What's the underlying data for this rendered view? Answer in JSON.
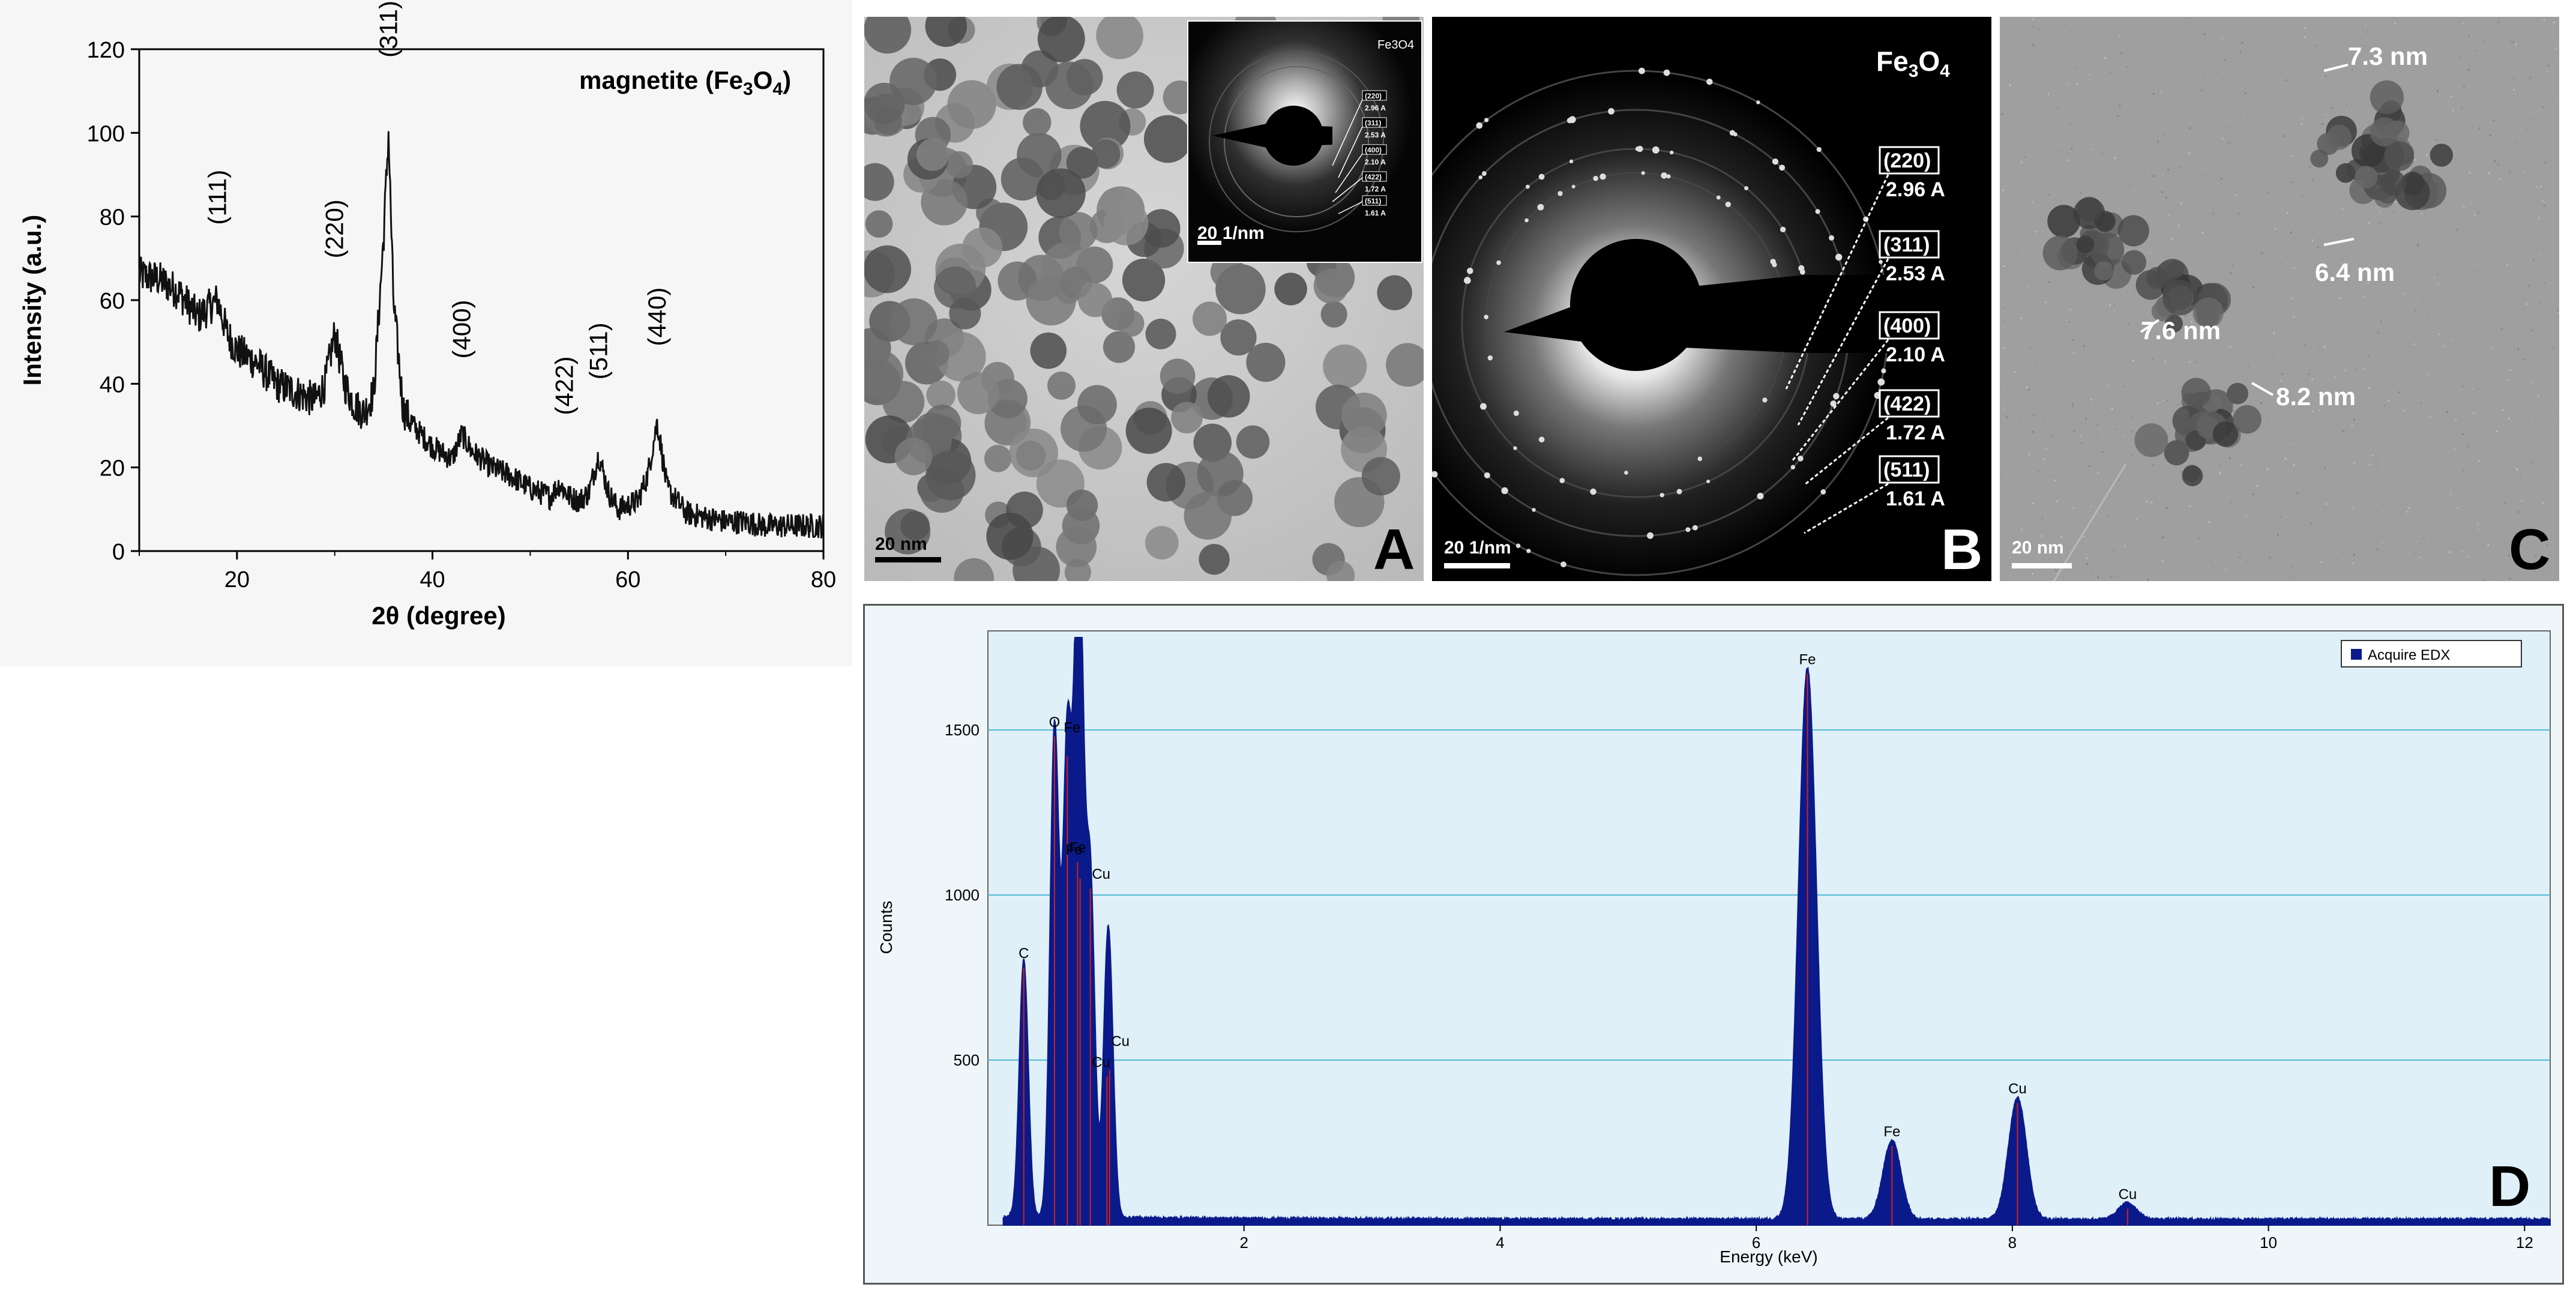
{
  "xrd": {
    "title_prefix": "magnetite (",
    "title_formula": "Fe3O4",
    "title_suffix": ")",
    "ylabel": "Intensity (a.u.)",
    "xlabel": "2θ (degree)",
    "yticks": [
      "0",
      "20",
      "40",
      "60",
      "80",
      "100",
      "120"
    ],
    "xticks": [
      "20",
      "40",
      "60",
      "80"
    ]
  },
  "tem_a": {
    "scale_bar": "20 nm",
    "inset_title": "Fe3O4",
    "inset_scale": "20 1/nm",
    "panel_label": "A"
  },
  "saed_b": {
    "title": "Fe3O4",
    "scale_bar": "20 1/nm",
    "panel_label": "B",
    "rings": [
      {
        "hkl": "(220)",
        "d": "2.96 A"
      },
      {
        "hkl": "(311)",
        "d": "2.53 A"
      },
      {
        "hkl": "(400)",
        "d": "2.10 A"
      },
      {
        "hkl": "(422)",
        "d": "1.72 A"
      },
      {
        "hkl": "(511)",
        "d": "1.61 A"
      }
    ]
  },
  "hrtem_c": {
    "scale_bar": "20 nm",
    "panel_label": "C",
    "sizes": [
      "7.3 nm",
      "6.4 nm",
      "7.6 nm",
      "8.2 nm"
    ]
  },
  "edx_d": {
    "legend": "Acquire EDX",
    "ylabel": "Counts",
    "xlabel": "Energy (keV)",
    "panel_label": "D",
    "yticks": [
      "500",
      "1000",
      "1500"
    ],
    "xticks": [
      "2",
      "4",
      "6",
      "8",
      "10",
      "12"
    ]
  },
  "chart_data": [
    {
      "type": "line",
      "title": "magnetite (Fe3O4)",
      "xlabel": "2θ (degree)",
      "ylabel": "Intensity (a.u.)",
      "xlim": [
        10,
        80
      ],
      "ylim": [
        0,
        120
      ],
      "grid": false,
      "series": [
        {
          "x": [
            10,
            12,
            14,
            16,
            17,
            18,
            19,
            20,
            22,
            24,
            26,
            28,
            29,
            30,
            31,
            32,
            33,
            34,
            35,
            35.5,
            36,
            37,
            38,
            40,
            42,
            43,
            44,
            46,
            48,
            50,
            52,
            53,
            54,
            55,
            56,
            57,
            58,
            59,
            60,
            61,
            62,
            63,
            64,
            66,
            68,
            70,
            72,
            74,
            76,
            78,
            80
          ],
          "y": [
            66,
            65,
            62,
            56,
            58,
            60,
            52,
            48,
            45,
            40,
            38,
            36,
            40,
            52,
            40,
            35,
            33,
            38,
            75,
            100,
            60,
            34,
            30,
            25,
            22,
            28,
            24,
            20,
            18,
            15,
            13,
            16,
            13,
            12,
            14,
            23,
            14,
            10,
            11,
            12,
            18,
            31,
            15,
            9,
            8,
            7,
            7,
            6,
            6,
            6,
            6
          ]
        }
      ],
      "annotations": [
        "(111)",
        "(220)",
        "(311)",
        "(400)",
        "(422)",
        "(511)",
        "(440)"
      ],
      "annotation_x": [
        18,
        30,
        35.5,
        43,
        53.5,
        57,
        63
      ]
    },
    {
      "type": "area",
      "xlabel": "Energy (keV)",
      "ylabel": "Counts",
      "xlim": [
        0,
        12.2
      ],
      "ylim": [
        0,
        1800
      ],
      "grid": true,
      "legend_position": "top-right",
      "series": [
        {
          "name": "Acquire EDX",
          "peaks": [
            {
              "x": 0.28,
              "y": 780,
              "label": "C"
            },
            {
              "x": 0.52,
              "y": 1480,
              "label": "O"
            },
            {
              "x": 0.62,
              "y": 1420,
              "label": "Fe"
            },
            {
              "x": 0.7,
              "y": 1100,
              "label": "Fe"
            },
            {
              "x": 0.72,
              "y": 1050,
              "label": "Fe"
            },
            {
              "x": 0.8,
              "y": 1020,
              "label": "Cu"
            },
            {
              "x": 0.93,
              "y": 450,
              "label": "Cu"
            },
            {
              "x": 0.95,
              "y": 470,
              "label": "Cu"
            },
            {
              "x": 6.4,
              "y": 1670,
              "label": "Fe"
            },
            {
              "x": 7.06,
              "y": 240,
              "label": "Fe"
            },
            {
              "x": 8.04,
              "y": 370,
              "label": "Cu"
            },
            {
              "x": 8.9,
              "y": 50,
              "label": "Cu"
            }
          ]
        }
      ]
    }
  ],
  "colors": {
    "edx_bg": "#dff0f8",
    "edx_fill": "#0a1a8a",
    "edx_peak_line": "#d02020",
    "edx_grid": "#55b8d6"
  }
}
